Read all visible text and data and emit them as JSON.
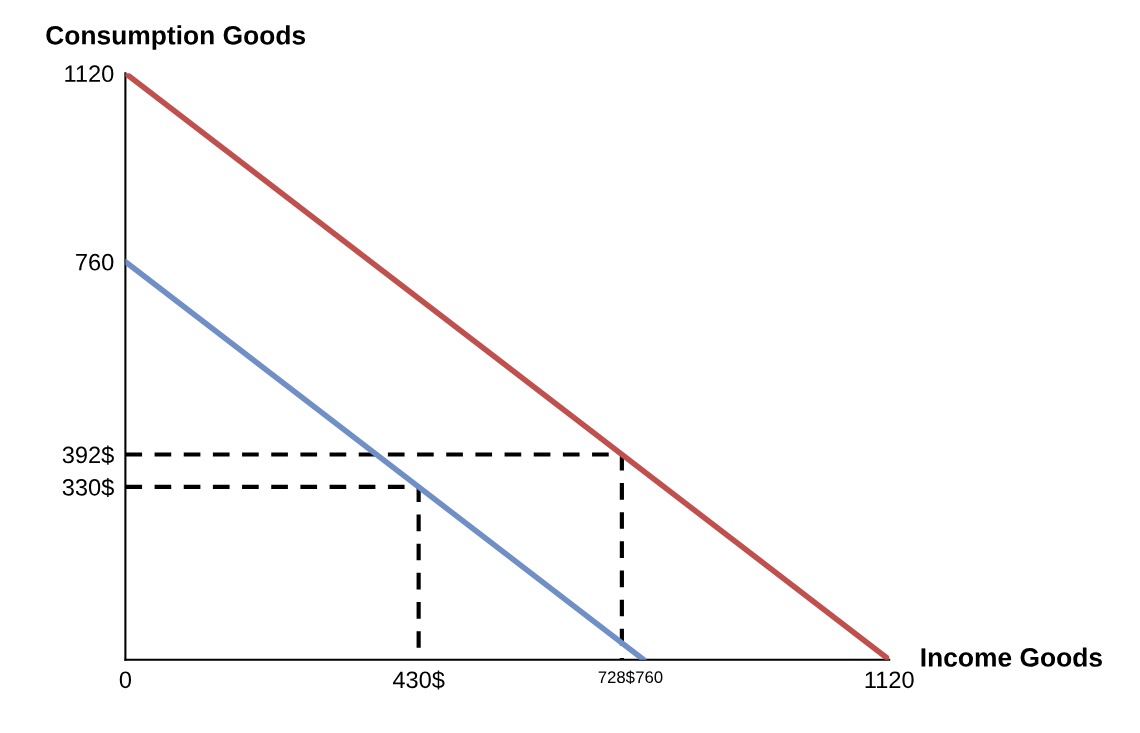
{
  "chart_data": {
    "type": "line",
    "xlabel": "Income Goods",
    "ylabel": "Consumption Goods",
    "xlim": [
      0,
      1120
    ],
    "ylim": [
      0,
      1120
    ],
    "xticks": [
      0,
      {
        "value": 430,
        "label": "430$"
      },
      {
        "value": 728,
        "label": "728$"
      },
      760,
      1120
    ],
    "yticks": [
      {
        "value": 330,
        "label": "330$"
      },
      {
        "value": 392,
        "label": "392$"
      },
      760,
      1120
    ],
    "grid": false,
    "legend": false,
    "series": [
      {
        "color": "#c0504d",
        "x": [
          0,
          1120
        ],
        "values": [
          1120,
          0
        ],
        "line_style": "solid"
      },
      {
        "color": "#6f8fc6",
        "x": [
          0,
          760
        ],
        "values": [
          760,
          0
        ],
        "line_style": "solid"
      },
      {
        "color": "#000000",
        "x": [
          0,
          728,
          728
        ],
        "values": [
          392,
          392,
          0
        ],
        "line_style": "dashed"
      },
      {
        "color": "#000000",
        "x": [
          0,
          430,
          430
        ],
        "values": [
          330,
          330,
          0
        ],
        "line_style": "dashed"
      }
    ]
  }
}
